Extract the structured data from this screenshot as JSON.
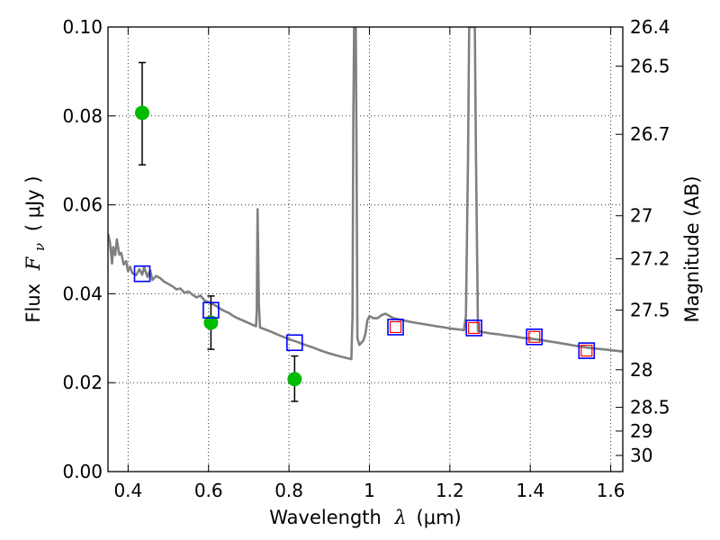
{
  "chart_data": {
    "type": "scatter",
    "title": "",
    "xlabel": {
      "prefix": "Wavelength",
      "symbol": "λ",
      "unit": "(μm)"
    },
    "ylabel": {
      "prefix": "Flux",
      "symbol": "F",
      "subscript": "ν",
      "unit": "( μJy )"
    },
    "y2label": "Magnitude (AB)",
    "xlim": [
      0.35,
      1.63
    ],
    "ylim": [
      0.0,
      0.1
    ],
    "grid": true,
    "x_ticks": [
      {
        "value": 0.4,
        "label": "0.4"
      },
      {
        "value": 0.6,
        "label": "0.6"
      },
      {
        "value": 0.8,
        "label": "0.8"
      },
      {
        "value": 1.0,
        "label": "1"
      },
      {
        "value": 1.2,
        "label": "1.2"
      },
      {
        "value": 1.4,
        "label": "1.4"
      },
      {
        "value": 1.6,
        "label": "1.6"
      }
    ],
    "y_ticks": [
      {
        "value": 0.0,
        "label": "0.00"
      },
      {
        "value": 0.02,
        "label": "0.02"
      },
      {
        "value": 0.04,
        "label": "0.04"
      },
      {
        "value": 0.06,
        "label": "0.06"
      },
      {
        "value": 0.08,
        "label": "0.08"
      },
      {
        "value": 0.1,
        "label": "0.10"
      }
    ],
    "y2_ticks": [
      {
        "value": 26.4,
        "label": "26.4"
      },
      {
        "value": 26.5,
        "label": "26.5"
      },
      {
        "value": 26.7,
        "label": "26.7"
      },
      {
        "value": 27.0,
        "label": "27"
      },
      {
        "value": 27.2,
        "label": "27.2"
      },
      {
        "value": 27.5,
        "label": "27.5"
      },
      {
        "value": 28.0,
        "label": "28"
      },
      {
        "value": 28.5,
        "label": "28.5"
      },
      {
        "value": 29.0,
        "label": "29"
      },
      {
        "value": 30.0,
        "label": "30"
      }
    ],
    "series": [
      {
        "kind": "line",
        "color": "#808080",
        "points": [
          [
            0.35,
            0.0535
          ],
          [
            0.355,
            0.0515
          ],
          [
            0.36,
            0.0468
          ],
          [
            0.363,
            0.0505
          ],
          [
            0.368,
            0.0487
          ],
          [
            0.372,
            0.0522
          ],
          [
            0.378,
            0.0488
          ],
          [
            0.383,
            0.0492
          ],
          [
            0.389,
            0.0466
          ],
          [
            0.395,
            0.0473
          ],
          [
            0.4,
            0.0451
          ],
          [
            0.405,
            0.0461
          ],
          [
            0.41,
            0.0447
          ],
          [
            0.42,
            0.0442
          ],
          [
            0.428,
            0.0455
          ],
          [
            0.435,
            0.0443
          ],
          [
            0.44,
            0.046
          ],
          [
            0.448,
            0.0438
          ],
          [
            0.455,
            0.0453
          ],
          [
            0.46,
            0.0431
          ],
          [
            0.47,
            0.044
          ],
          [
            0.48,
            0.0435
          ],
          [
            0.49,
            0.0427
          ],
          [
            0.5,
            0.0422
          ],
          [
            0.51,
            0.0417
          ],
          [
            0.52,
            0.041
          ],
          [
            0.53,
            0.0412
          ],
          [
            0.54,
            0.0402
          ],
          [
            0.55,
            0.0405
          ],
          [
            0.56,
            0.0398
          ],
          [
            0.57,
            0.0392
          ],
          [
            0.58,
            0.0396
          ],
          [
            0.59,
            0.0385
          ],
          [
            0.6,
            0.0381
          ],
          [
            0.61,
            0.0377
          ],
          [
            0.62,
            0.0372
          ],
          [
            0.63,
            0.0366
          ],
          [
            0.64,
            0.0361
          ],
          [
            0.65,
            0.0357
          ],
          [
            0.66,
            0.0351
          ],
          [
            0.67,
            0.0346
          ],
          [
            0.68,
            0.0342
          ],
          [
            0.69,
            0.0338
          ],
          [
            0.7,
            0.0334
          ],
          [
            0.71,
            0.033
          ],
          [
            0.718,
            0.0327
          ],
          [
            0.72,
            0.036
          ],
          [
            0.722,
            0.059
          ],
          [
            0.725,
            0.038
          ],
          [
            0.728,
            0.0324
          ],
          [
            0.74,
            0.032
          ],
          [
            0.76,
            0.0313
          ],
          [
            0.78,
            0.0305
          ],
          [
            0.8,
            0.0298
          ],
          [
            0.82,
            0.0292
          ],
          [
            0.84,
            0.0285
          ],
          [
            0.86,
            0.0279
          ],
          [
            0.88,
            0.0272
          ],
          [
            0.9,
            0.0266
          ],
          [
            0.92,
            0.0261
          ],
          [
            0.94,
            0.0256
          ],
          [
            0.955,
            0.0253
          ],
          [
            0.958,
            0.035
          ],
          [
            0.96,
            0.08
          ],
          [
            0.962,
            0.1
          ],
          [
            0.966,
            0.1
          ],
          [
            0.968,
            0.07
          ],
          [
            0.97,
            0.03
          ],
          [
            0.975,
            0.0285
          ],
          [
            0.985,
            0.0295
          ],
          [
            0.99,
            0.031
          ],
          [
            0.995,
            0.034
          ],
          [
            1.0,
            0.035
          ],
          [
            1.01,
            0.0345
          ],
          [
            1.02,
            0.0345
          ],
          [
            1.03,
            0.0352
          ],
          [
            1.04,
            0.0355
          ],
          [
            1.05,
            0.035
          ],
          [
            1.06,
            0.0345
          ],
          [
            1.08,
            0.0341
          ],
          [
            1.1,
            0.0337
          ],
          [
            1.12,
            0.0334
          ],
          [
            1.14,
            0.0331
          ],
          [
            1.16,
            0.0328
          ],
          [
            1.18,
            0.0325
          ],
          [
            1.2,
            0.0322
          ],
          [
            1.22,
            0.032
          ],
          [
            1.235,
            0.0318
          ],
          [
            1.24,
            0.035
          ],
          [
            1.245,
            0.07
          ],
          [
            1.248,
            0.1
          ],
          [
            1.262,
            0.1
          ],
          [
            1.265,
            0.07
          ],
          [
            1.27,
            0.0316
          ],
          [
            1.28,
            0.0314
          ],
          [
            1.3,
            0.0311
          ],
          [
            1.32,
            0.0309
          ],
          [
            1.34,
            0.0306
          ],
          [
            1.36,
            0.0304
          ],
          [
            1.38,
            0.0301
          ],
          [
            1.4,
            0.0299
          ],
          [
            1.42,
            0.0297
          ],
          [
            1.44,
            0.0294
          ],
          [
            1.46,
            0.0291
          ],
          [
            1.48,
            0.0288
          ],
          [
            1.5,
            0.0285
          ],
          [
            1.52,
            0.0282
          ],
          [
            1.54,
            0.0279
          ],
          [
            1.56,
            0.0277
          ],
          [
            1.58,
            0.0275
          ],
          [
            1.6,
            0.0273
          ],
          [
            1.63,
            0.027
          ]
        ]
      },
      {
        "kind": "errorbar_points",
        "color": "#00bb00",
        "points": [
          {
            "x": 0.435,
            "y": 0.0807,
            "ylow": 0.069,
            "yhigh": 0.092
          },
          {
            "x": 0.606,
            "y": 0.0335,
            "ylow": 0.0275,
            "yhigh": 0.0395
          },
          {
            "x": 0.814,
            "y": 0.0208,
            "ylow": 0.0158,
            "yhigh": 0.026
          }
        ]
      },
      {
        "kind": "open_squares",
        "color": "#0000ff",
        "points": [
          [
            0.435,
            0.0445
          ],
          [
            0.606,
            0.0363
          ],
          [
            0.814,
            0.029
          ],
          [
            1.065,
            0.0325
          ],
          [
            1.26,
            0.0323
          ],
          [
            1.41,
            0.0303
          ],
          [
            1.54,
            0.0272
          ]
        ]
      },
      {
        "kind": "open_squares_small",
        "color": "#ff0000",
        "points": [
          [
            1.065,
            0.0325
          ],
          [
            1.26,
            0.0323
          ],
          [
            1.41,
            0.0303
          ],
          [
            1.54,
            0.0272
          ]
        ]
      }
    ]
  }
}
